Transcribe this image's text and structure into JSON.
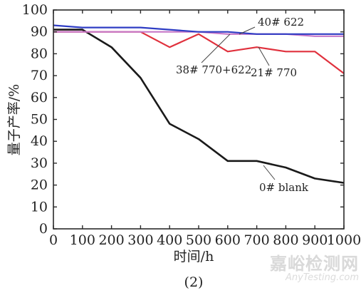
{
  "chart_data": {
    "type": "line",
    "xlabel": "时间/h",
    "ylabel": "量子产率/%",
    "caption": "(2)",
    "xlim": [
      0,
      1000
    ],
    "ylim": [
      0,
      100
    ],
    "xticks": [
      0,
      100,
      200,
      300,
      400,
      500,
      600,
      700,
      800,
      900,
      1000
    ],
    "yticks": [
      0,
      10,
      20,
      30,
      40,
      50,
      60,
      70,
      80,
      90,
      100
    ],
    "grid": false,
    "series": [
      {
        "name": "0# blank",
        "color": "#1a1a1a",
        "x": [
          0,
          100,
          200,
          300,
          400,
          500,
          600,
          700,
          800,
          900,
          1000
        ],
        "y": [
          91,
          91,
          83,
          69,
          48,
          41,
          31,
          31,
          28,
          23,
          21
        ]
      },
      {
        "name": "21# 770",
        "color": "#e0313d",
        "x": [
          0,
          100,
          200,
          300,
          400,
          500,
          600,
          700,
          800,
          900,
          1000
        ],
        "y": [
          90,
          90,
          90,
          90,
          83,
          89,
          81,
          83,
          81,
          81,
          71
        ]
      },
      {
        "name": "38# 770+622",
        "color": "#c678c8",
        "x": [
          0,
          100,
          200,
          300,
          400,
          500,
          600,
          700,
          800,
          900,
          1000
        ],
        "y": [
          90,
          90,
          90,
          90,
          90,
          90,
          89,
          89,
          89,
          88,
          88
        ]
      },
      {
        "name": "40# 622",
        "color": "#2f3dc4",
        "x": [
          0,
          100,
          200,
          300,
          400,
          500,
          600,
          700,
          800,
          900,
          1000
        ],
        "y": [
          93,
          92,
          92,
          92,
          91,
          90,
          90,
          89,
          89,
          89,
          89
        ]
      }
    ]
  },
  "watermark": {
    "text": "嘉峪检测网",
    "sub": "AnyTesting.com"
  }
}
